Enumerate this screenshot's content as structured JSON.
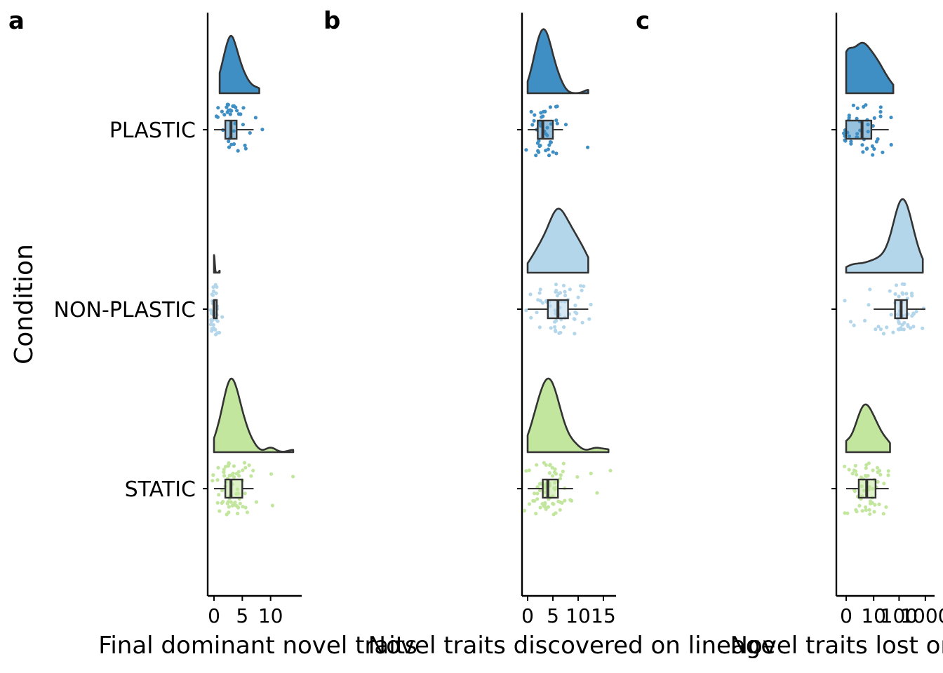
{
  "chart_data": {
    "type": "raincloud",
    "ylabel": "Condition",
    "categories": [
      "PLASTIC",
      "NON-PLASTIC",
      "STATIC"
    ],
    "colors": {
      "PLASTIC": "#3F8FC4",
      "NON-PLASTIC": "#B4D6EB",
      "STATIC": "#C2E69D"
    },
    "panels": [
      {
        "letter": "a",
        "xlabel": "Final dominant novel traits",
        "scale": "linear",
        "xlim": [
          -1,
          14.5
        ],
        "ticks": [
          0,
          5,
          10
        ],
        "tick_labels": [
          "0",
          "5",
          "10"
        ],
        "series": [
          {
            "name": "PLASTIC",
            "box": {
              "min": 0,
              "q1": 2,
              "median": 3,
              "q3": 4,
              "max": 7
            },
            "points": [
              1,
              1,
              2,
              2,
              2,
              2,
              2,
              3,
              3,
              3,
              3,
              3,
              3,
              3,
              3,
              4,
              4,
              4,
              4,
              4,
              4,
              5,
              5,
              5,
              6,
              6,
              7,
              8,
              1,
              2,
              3,
              4,
              2,
              3,
              5,
              3
            ]
          },
          {
            "name": "NON-PLASTIC",
            "box": {
              "min": 0,
              "q1": 0,
              "median": 0,
              "q3": 0,
              "max": 0
            },
            "points": [
              0,
              0,
              0,
              0,
              0,
              0,
              0,
              0,
              0,
              0,
              0,
              0,
              0,
              0,
              0,
              0,
              0,
              0,
              0,
              0,
              0,
              0,
              0,
              0,
              0,
              0,
              0,
              0,
              0,
              0,
              1,
              1,
              1,
              1,
              0,
              0,
              0,
              0,
              0,
              0
            ]
          },
          {
            "name": "STATIC",
            "box": {
              "min": 0,
              "q1": 2,
              "median": 3,
              "q3": 5,
              "max": 7
            },
            "points": [
              0,
              1,
              1,
              1,
              2,
              2,
              2,
              2,
              2,
              2,
              3,
              3,
              3,
              3,
              3,
              3,
              3,
              3,
              3,
              3,
              4,
              4,
              4,
              4,
              4,
              4,
              4,
              5,
              5,
              5,
              5,
              5,
              5,
              6,
              6,
              6,
              7,
              7,
              10,
              10,
              14,
              0,
              1,
              2,
              3,
              4,
              1,
              2,
              3,
              4,
              2,
              3,
              3,
              4,
              5,
              2,
              3,
              4,
              1,
              2,
              3,
              4,
              2,
              3,
              5,
              6,
              3,
              4
            ]
          }
        ]
      },
      {
        "letter": "b",
        "xlabel": "Novel traits discovered on lineage",
        "scale": "linear",
        "xlim": [
          -1,
          16.5
        ],
        "ticks": [
          0,
          5,
          10,
          15
        ],
        "tick_labels": [
          "0",
          "5",
          "10",
          "15"
        ],
        "series": [
          {
            "name": "PLASTIC",
            "box": {
              "min": 0,
              "q1": 2,
              "median": 3,
              "q3": 5,
              "max": 7
            },
            "points": [
              0,
              1,
              1,
              2,
              2,
              2,
              2,
              3,
              3,
              3,
              3,
              3,
              3,
              4,
              4,
              4,
              4,
              4,
              5,
              5,
              5,
              6,
              6,
              7,
              12,
              1,
              2,
              3,
              4,
              5,
              2,
              3,
              4,
              1,
              2,
              3,
              4,
              6,
              2,
              3,
              4,
              5
            ]
          },
          {
            "name": "NON-PLASTIC",
            "box": {
              "min": 0,
              "q1": 4,
              "median": 6,
              "q3": 8,
              "max": 12
            },
            "points": [
              0,
              1,
              2,
              2,
              3,
              3,
              3,
              4,
              4,
              4,
              5,
              5,
              5,
              5,
              6,
              6,
              6,
              6,
              6,
              7,
              7,
              7,
              7,
              8,
              8,
              8,
              9,
              9,
              9,
              10,
              10,
              10,
              11,
              11,
              12,
              12,
              2,
              4,
              5,
              6,
              7,
              8,
              9,
              10,
              3,
              5,
              6,
              7,
              8,
              4,
              6,
              7,
              9,
              11,
              1,
              5,
              6,
              8
            ]
          },
          {
            "name": "STATIC",
            "box": {
              "min": 0,
              "q1": 3,
              "median": 4,
              "q3": 6,
              "max": 9
            },
            "points": [
              0,
              0,
              1,
              1,
              1,
              2,
              2,
              2,
              2,
              3,
              3,
              3,
              3,
              3,
              3,
              4,
              4,
              4,
              4,
              4,
              4,
              4,
              4,
              5,
              5,
              5,
              5,
              5,
              5,
              5,
              6,
              6,
              6,
              6,
              6,
              7,
              7,
              7,
              8,
              8,
              9,
              9,
              10,
              13,
              14,
              16,
              1,
              2,
              3,
              4,
              5,
              6,
              2,
              3,
              4,
              5,
              3,
              4,
              5,
              6,
              7,
              2,
              3,
              4,
              5,
              1,
              2,
              3,
              4,
              5,
              6,
              7
            ]
          }
        ]
      },
      {
        "letter": "c",
        "xlabel": "Novel traits lost on lineage",
        "scale": "log1p",
        "xlim": [
          -0.15,
          3.2
        ],
        "ticks": [
          0,
          10,
          100,
          1000
        ],
        "tick_labels": [
          "0",
          "10",
          "100",
          "1000"
        ],
        "series": [
          {
            "name": "PLASTIC",
            "box": {
              "min": 0,
              "q1": 0,
              "median": 3,
              "q3": 8,
              "max": 40
            },
            "points": [
              0,
              0,
              0,
              0,
              0,
              0,
              0,
              0,
              1,
              1,
              1,
              1,
              2,
              2,
              2,
              3,
              3,
              3,
              4,
              4,
              5,
              5,
              6,
              7,
              8,
              9,
              10,
              12,
              15,
              18,
              20,
              25,
              30,
              40,
              60,
              1,
              2,
              3,
              0,
              0,
              5,
              10,
              15
            ]
          },
          {
            "name": "NON-PLASTIC",
            "box": {
              "min": 10,
              "q1": 70,
              "median": 120,
              "q3": 200,
              "max": 1000
            },
            "points": [
              0,
              1,
              1,
              3,
              5,
              8,
              10,
              15,
              20,
              25,
              30,
              40,
              50,
              60,
              70,
              80,
              90,
              100,
              110,
              120,
              130,
              140,
              150,
              160,
              180,
              200,
              220,
              250,
              280,
              300,
              350,
              400,
              500,
              600,
              800,
              60,
              80,
              100,
              120,
              150,
              200,
              250,
              100,
              130,
              170,
              70,
              90,
              110,
              140,
              190,
              230,
              300
            ]
          },
          {
            "name": "STATIC",
            "box": {
              "min": 0,
              "q1": 2,
              "median": 5,
              "q3": 12,
              "max": 40
            },
            "points": [
              0,
              0,
              0,
              0,
              1,
              1,
              1,
              1,
              2,
              2,
              2,
              2,
              3,
              3,
              3,
              3,
              4,
              4,
              4,
              5,
              5,
              5,
              6,
              6,
              7,
              7,
              8,
              9,
              10,
              11,
              12,
              14,
              16,
              18,
              20,
              25,
              30,
              35,
              40,
              45,
              1,
              2,
              3,
              4,
              5,
              6,
              8,
              10,
              2,
              3,
              4,
              6,
              9,
              12,
              15,
              20
            ]
          }
        ]
      }
    ]
  }
}
